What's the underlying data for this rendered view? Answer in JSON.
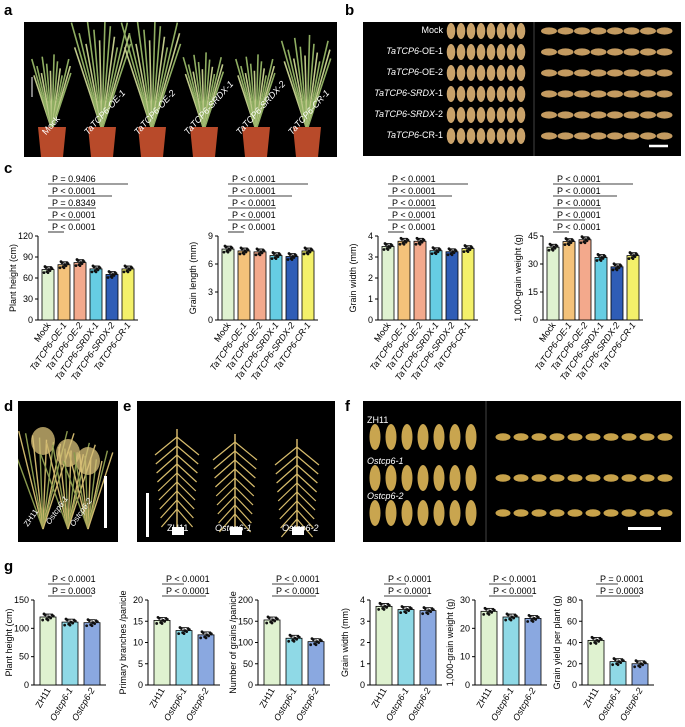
{
  "panels": {
    "a": "a",
    "b": "b",
    "c": "c",
    "d": "d",
    "e": "e",
    "f": "f",
    "g": "g"
  },
  "photo_a": {
    "labels": [
      "Mock",
      "TaTCP6-OE-1",
      "TaTCP6-OE-2",
      "TaTCP6-SRDX-1",
      "TaTCP6-SRDX-2",
      "TaTCP6-CR-1"
    ]
  },
  "photo_b": {
    "rows": [
      {
        "prefix": "Mock",
        "gene": "",
        "suffix": ""
      },
      {
        "prefix": "",
        "gene": "TaTCP6",
        "suffix": "-OE-1"
      },
      {
        "prefix": "",
        "gene": "TaTCP6",
        "suffix": "-OE-2"
      },
      {
        "prefix": "",
        "gene": "TaTCP6-SRDX",
        "suffix": "-1"
      },
      {
        "prefix": "",
        "gene": "TaTCP6-SRDX",
        "suffix": "-2"
      },
      {
        "prefix": "",
        "gene": "TaTCP6",
        "suffix": "-CR-1"
      }
    ]
  },
  "photo_d": {
    "labels": [
      "ZH11",
      "Ostcp6-1",
      "Ostcp6-2"
    ]
  },
  "photo_e": {
    "labels": [
      "ZH11",
      "Ostcp6-1",
      "Ostcp6-2"
    ]
  },
  "photo_f": {
    "rows": [
      "ZH11",
      "Ostcp6-1",
      "Ostcp6-2"
    ]
  },
  "colors": {
    "c": [
      "#dff2d0",
      "#f4c27a",
      "#f3a98c",
      "#66cde3",
      "#2f5db6",
      "#f3f06a"
    ],
    "g": [
      "#dff2d0",
      "#8fd9e6",
      "#8aa8e0"
    ]
  },
  "chart_data": [
    {
      "type": "bar",
      "panel": "c",
      "categories": [
        "Mock",
        "TaTCP6-OE-1",
        "TaTCP6-OE-2",
        "TaTCP6-SRDX-1",
        "TaTCP6-SRDX-2",
        "TaTCP6-CR-1"
      ],
      "values": [
        72,
        79,
        82,
        73,
        65,
        73
      ],
      "ylabel": "Plant height (cm)",
      "ylim": [
        0,
        120
      ],
      "yticks": [
        0,
        30,
        60,
        90,
        120
      ],
      "pvalues": [
        "P = 0.9406",
        "P < 0.0001",
        "P = 0.8349",
        "P < 0.0001",
        "P < 0.0001"
      ]
    },
    {
      "type": "bar",
      "panel": "c",
      "categories": [
        "Mock",
        "TaTCP6-OE-1",
        "TaTCP6-OE-2",
        "TaTCP6-SRDX-1",
        "TaTCP6-SRDX-2",
        "TaTCP6-CR-1"
      ],
      "values": [
        7.6,
        7.4,
        7.3,
        6.9,
        6.8,
        7.4
      ],
      "ylabel": "Grain length (mm)",
      "ylim": [
        0,
        9
      ],
      "yticks": [
        0,
        3,
        6,
        9
      ],
      "pvalues": [
        "P < 0.0001",
        "P < 0.0001",
        "P < 0.0001",
        "P < 0.0001",
        "P < 0.0001"
      ]
    },
    {
      "type": "bar",
      "panel": "c",
      "categories": [
        "Mock",
        "TaTCP6-OE-1",
        "TaTCP6-OE-2",
        "TaTCP6-SRDX-1",
        "TaTCP6-SRDX-2",
        "TaTCP6-CR-1"
      ],
      "values": [
        3.5,
        3.75,
        3.75,
        3.3,
        3.25,
        3.4
      ],
      "ylabel": "Grain width (mm)",
      "ylim": [
        0,
        4
      ],
      "yticks": [
        0,
        1,
        2,
        3,
        4
      ],
      "pvalues": [
        "P < 0.0001",
        "P < 0.0001",
        "P < 0.0001",
        "P < 0.0001",
        "P < 0.0001"
      ]
    },
    {
      "type": "bar",
      "panel": "c",
      "categories": [
        "Mock",
        "TaTCP6-OE-1",
        "TaTCP6-OE-2",
        "TaTCP6-SRDX-1",
        "TaTCP6-SRDX-2",
        "TaTCP6-CR-1"
      ],
      "values": [
        39,
        42,
        43,
        33.5,
        28.5,
        34.5
      ],
      "ylabel": "1,000-grain weight (g)",
      "ylim": [
        0,
        45
      ],
      "yticks": [
        0,
        15,
        30,
        45
      ],
      "pvalues": [
        "P < 0.0001",
        "P < 0.0001",
        "P < 0.0001",
        "P < 0.0001",
        "P < 0.0001"
      ]
    },
    {
      "type": "bar",
      "panel": "g",
      "categories": [
        "ZH11",
        "Ostcp6-1",
        "Ostcp6-2"
      ],
      "values": [
        120,
        111,
        110
      ],
      "ylabel": "Plant height (cm)",
      "ylim": [
        0,
        150
      ],
      "yticks": [
        0,
        50,
        100,
        150
      ],
      "pvalues": [
        "P < 0.0001",
        "P = 0.0003"
      ]
    },
    {
      "type": "bar",
      "panel": "g",
      "categories": [
        "ZH11",
        "Ostcp6-1",
        "Ostcp6-2"
      ],
      "values": [
        15.2,
        12.8,
        11.8
      ],
      "ylabel": "Primary branches /panicle",
      "ylim": [
        0,
        20
      ],
      "yticks": [
        0,
        5,
        10,
        15,
        20
      ],
      "pvalues": [
        "P < 0.0001",
        "P < 0.0001"
      ]
    },
    {
      "type": "bar",
      "panel": "g",
      "categories": [
        "ZH11",
        "Ostcp6-1",
        "Ostcp6-2"
      ],
      "values": [
        153,
        110,
        102
      ],
      "ylabel": "Number of grains /panicle",
      "ylim": [
        0,
        200
      ],
      "yticks": [
        0,
        50,
        100,
        150,
        200
      ],
      "pvalues": [
        "P < 0.0001",
        "P < 0.0001"
      ]
    },
    {
      "type": "bar",
      "panel": "g",
      "categories": [
        "ZH11",
        "Ostcp6-1",
        "Ostcp6-2"
      ],
      "values": [
        3.7,
        3.55,
        3.5
      ],
      "ylabel": "Grain width (mm)",
      "ylim": [
        0,
        4
      ],
      "yticks": [
        0,
        1,
        2,
        3,
        4
      ],
      "pvalues": [
        "P < 0.0001",
        "P < 0.0001"
      ]
    },
    {
      "type": "bar",
      "panel": "g",
      "categories": [
        "ZH11",
        "Ostcp6-1",
        "Ostcp6-2"
      ],
      "values": [
        26,
        24,
        23.5
      ],
      "ylabel": "1,000-grain weight (g)",
      "ylim": [
        0,
        30
      ],
      "yticks": [
        0,
        10,
        20,
        30
      ],
      "pvalues": [
        "P < 0.0001",
        "P < 0.0001"
      ]
    },
    {
      "type": "bar",
      "panel": "g",
      "categories": [
        "ZH11",
        "Ostcp6-1",
        "Ostcp6-2"
      ],
      "values": [
        42,
        22,
        20
      ],
      "ylabel": "Grain yield per plant (g)",
      "ylim": [
        0,
        80
      ],
      "yticks": [
        0,
        20,
        40,
        60,
        80
      ],
      "pvalues": [
        "P = 0.0001",
        "P = 0.0003"
      ]
    }
  ]
}
